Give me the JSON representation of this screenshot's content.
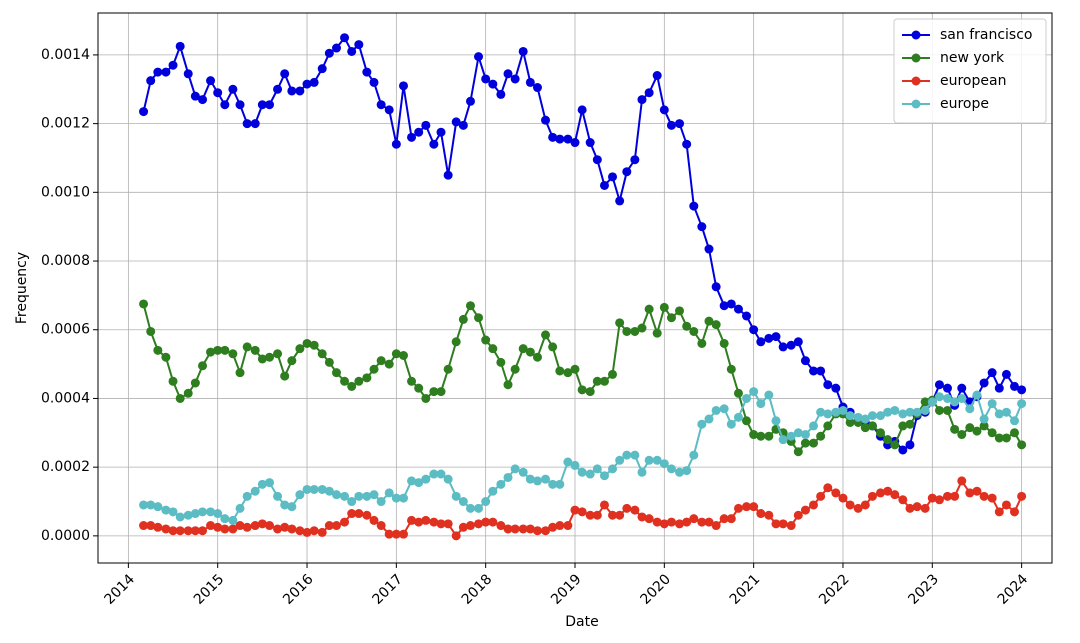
{
  "chart_data": {
    "type": "line",
    "xlabel": "Date",
    "ylabel": "Frequency",
    "x": [
      2014.17,
      2014.25,
      2014.33,
      2014.42,
      2014.5,
      2014.58,
      2014.67,
      2014.75,
      2014.83,
      2014.92,
      2015,
      2015.08,
      2015.17,
      2015.25,
      2015.33,
      2015.42,
      2015.5,
      2015.58,
      2015.67,
      2015.75,
      2015.83,
      2015.92,
      2016,
      2016.08,
      2016.17,
      2016.25,
      2016.33,
      2016.42,
      2016.5,
      2016.58,
      2016.67,
      2016.75,
      2016.83,
      2016.92,
      2017,
      2017.08,
      2017.17,
      2017.25,
      2017.33,
      2017.42,
      2017.5,
      2017.58,
      2017.67,
      2017.75,
      2017.83,
      2017.92,
      2018,
      2018.08,
      2018.17,
      2018.25,
      2018.33,
      2018.42,
      2018.5,
      2018.58,
      2018.67,
      2018.75,
      2018.83,
      2018.92,
      2019,
      2019.08,
      2019.17,
      2019.25,
      2019.33,
      2019.42,
      2019.5,
      2019.58,
      2019.67,
      2019.75,
      2019.83,
      2019.92,
      2020,
      2020.08,
      2020.17,
      2020.25,
      2020.33,
      2020.42,
      2020.5,
      2020.58,
      2020.67,
      2020.75,
      2020.83,
      2020.92,
      2021,
      2021.08,
      2021.17,
      2021.25,
      2021.33,
      2021.42,
      2021.5,
      2021.58,
      2021.67,
      2021.75,
      2021.83,
      2021.92,
      2022,
      2022.08,
      2022.17,
      2022.25,
      2022.33,
      2022.42,
      2022.5,
      2022.58,
      2022.67,
      2022.75,
      2022.83,
      2022.92,
      2023,
      2023.08,
      2023.17,
      2023.25,
      2023.33,
      2023.42,
      2023.5,
      2023.58,
      2023.67,
      2023.75,
      2023.83,
      2023.92,
      2024
    ],
    "series": [
      {
        "name": "san francisco",
        "color": "#0000dd",
        "values": [
          0.001235,
          0.001325,
          0.00135,
          0.00135,
          0.00137,
          0.001425,
          0.001345,
          0.00128,
          0.00127,
          0.001325,
          0.00129,
          0.001255,
          0.0013,
          0.001255,
          0.0012,
          0.0012,
          0.001255,
          0.001255,
          0.0013,
          0.001345,
          0.001295,
          0.001295,
          0.001315,
          0.00132,
          0.00136,
          0.001405,
          0.00142,
          0.00145,
          0.00141,
          0.00143,
          0.00135,
          0.00132,
          0.001255,
          0.00124,
          0.00114,
          0.00131,
          0.00116,
          0.001175,
          0.001195,
          0.00114,
          0.001175,
          0.00105,
          0.001205,
          0.001195,
          0.001265,
          0.001395,
          0.00133,
          0.001315,
          0.001285,
          0.001345,
          0.00133,
          0.00141,
          0.00132,
          0.001305,
          0.00121,
          0.00116,
          0.001155,
          0.001155,
          0.001145,
          0.00124,
          0.001145,
          0.001095,
          0.00102,
          0.001045,
          0.000975,
          0.00106,
          0.001095,
          0.00127,
          0.00129,
          0.00134,
          0.00124,
          0.001195,
          0.0012,
          0.00114,
          0.00096,
          0.0009,
          0.000835,
          0.000725,
          0.00067,
          0.000675,
          0.00066,
          0.00064,
          0.0006,
          0.000565,
          0.000575,
          0.00058,
          0.00055,
          0.000555,
          0.000565,
          0.00051,
          0.00048,
          0.00048,
          0.00044,
          0.00043,
          0.000375,
          0.00036,
          0.000335,
          0.00033,
          0.00032,
          0.00029,
          0.000265,
          0.000275,
          0.00025,
          0.000265,
          0.00035,
          0.00036,
          0.00039,
          0.00044,
          0.00043,
          0.00038,
          0.00043,
          0.00039,
          0.000405,
          0.000445,
          0.000475,
          0.00043,
          0.00047,
          0.000435,
          0.000425
        ]
      },
      {
        "name": "new york",
        "color": "#2e7d1f",
        "values": [
          0.000675,
          0.000595,
          0.00054,
          0.00052,
          0.00045,
          0.0004,
          0.000415,
          0.000445,
          0.000495,
          0.000535,
          0.00054,
          0.00054,
          0.00053,
          0.000475,
          0.00055,
          0.00054,
          0.000515,
          0.00052,
          0.00053,
          0.000465,
          0.00051,
          0.000545,
          0.00056,
          0.000555,
          0.00053,
          0.000505,
          0.000475,
          0.00045,
          0.000435,
          0.00045,
          0.00046,
          0.000485,
          0.00051,
          0.0005,
          0.00053,
          0.000525,
          0.00045,
          0.00043,
          0.0004,
          0.00042,
          0.00042,
          0.000485,
          0.000565,
          0.00063,
          0.00067,
          0.000635,
          0.00057,
          0.000545,
          0.000505,
          0.00044,
          0.000485,
          0.000545,
          0.000535,
          0.00052,
          0.000585,
          0.00055,
          0.00048,
          0.000475,
          0.000485,
          0.000425,
          0.00042,
          0.00045,
          0.00045,
          0.00047,
          0.00062,
          0.000595,
          0.000595,
          0.000605,
          0.00066,
          0.00059,
          0.000665,
          0.000635,
          0.000655,
          0.00061,
          0.000595,
          0.00056,
          0.000625,
          0.000615,
          0.00056,
          0.000485,
          0.000415,
          0.000335,
          0.000295,
          0.00029,
          0.00029,
          0.00031,
          0.0003,
          0.000275,
          0.000245,
          0.00027,
          0.00027,
          0.00029,
          0.00032,
          0.000355,
          0.000355,
          0.00033,
          0.00033,
          0.000315,
          0.00032,
          0.0003,
          0.00028,
          0.000265,
          0.00032,
          0.000325,
          0.000355,
          0.00039,
          0.000395,
          0.000365,
          0.000365,
          0.00031,
          0.000295,
          0.000315,
          0.000305,
          0.00032,
          0.0003,
          0.000285,
          0.000285,
          0.0003,
          0.000265
        ]
      },
      {
        "name": "european",
        "color": "#e03020",
        "values": [
          3e-05,
          3e-05,
          2.5e-05,
          2e-05,
          1.5e-05,
          1.5e-05,
          1.5e-05,
          1.5e-05,
          1.5e-05,
          3e-05,
          2.5e-05,
          2e-05,
          2e-05,
          3e-05,
          2.5e-05,
          3e-05,
          3.5e-05,
          3e-05,
          2e-05,
          2.5e-05,
          2e-05,
          1.5e-05,
          1e-05,
          1.5e-05,
          1e-05,
          3e-05,
          3e-05,
          4e-05,
          6.5e-05,
          6.5e-05,
          6e-05,
          4.5e-05,
          3e-05,
          5e-06,
          5e-06,
          5e-06,
          4.5e-05,
          4e-05,
          4.5e-05,
          4e-05,
          3.5e-05,
          3.5e-05,
          0,
          2.5e-05,
          3e-05,
          3.5e-05,
          4e-05,
          4e-05,
          3e-05,
          2e-05,
          2e-05,
          2e-05,
          2e-05,
          1.5e-05,
          1.5e-05,
          2.5e-05,
          3e-05,
          3e-05,
          7.5e-05,
          7e-05,
          6e-05,
          6e-05,
          9e-05,
          6e-05,
          6e-05,
          8e-05,
          7.5e-05,
          5.5e-05,
          5e-05,
          4e-05,
          3.5e-05,
          4e-05,
          3.5e-05,
          4e-05,
          5e-05,
          4e-05,
          4e-05,
          3e-05,
          5e-05,
          5e-05,
          8e-05,
          8.5e-05,
          8.5e-05,
          6.5e-05,
          6e-05,
          3.5e-05,
          3.5e-05,
          3e-05,
          6e-05,
          7.5e-05,
          9e-05,
          0.000115,
          0.00014,
          0.000125,
          0.00011,
          9e-05,
          8e-05,
          9e-05,
          0.000115,
          0.000125,
          0.00013,
          0.00012,
          0.000105,
          8e-05,
          8.5e-05,
          8e-05,
          0.00011,
          0.000105,
          0.000115,
          0.000115,
          0.00016,
          0.000125,
          0.00013,
          0.000115,
          0.00011,
          7e-05,
          9e-05,
          7e-05,
          0.000115
        ]
      },
      {
        "name": "europe",
        "color": "#5bbcc4",
        "values": [
          9e-05,
          9e-05,
          8.5e-05,
          7.5e-05,
          7e-05,
          5.5e-05,
          6e-05,
          6.5e-05,
          7e-05,
          7e-05,
          6.5e-05,
          5e-05,
          4.5e-05,
          8e-05,
          0.000115,
          0.00013,
          0.00015,
          0.000155,
          0.000115,
          9e-05,
          8.5e-05,
          0.00012,
          0.000135,
          0.000135,
          0.000135,
          0.00013,
          0.00012,
          0.000115,
          0.0001,
          0.000115,
          0.000115,
          0.00012,
          0.0001,
          0.000125,
          0.00011,
          0.00011,
          0.00016,
          0.000155,
          0.000165,
          0.00018,
          0.00018,
          0.000165,
          0.000115,
          0.0001,
          8e-05,
          8e-05,
          0.0001,
          0.00013,
          0.00015,
          0.00017,
          0.000195,
          0.000185,
          0.000165,
          0.00016,
          0.000165,
          0.00015,
          0.00015,
          0.000215,
          0.000205,
          0.000185,
          0.00018,
          0.000195,
          0.000175,
          0.000195,
          0.00022,
          0.000235,
          0.000235,
          0.000185,
          0.00022,
          0.00022,
          0.00021,
          0.000195,
          0.000185,
          0.00019,
          0.000235,
          0.000325,
          0.00034,
          0.000365,
          0.00037,
          0.000325,
          0.000345,
          0.0004,
          0.00042,
          0.000385,
          0.00041,
          0.000335,
          0.00028,
          0.00029,
          0.0003,
          0.000295,
          0.00032,
          0.00036,
          0.000355,
          0.00036,
          0.000365,
          0.00035,
          0.000345,
          0.00034,
          0.00035,
          0.00035,
          0.00036,
          0.000365,
          0.000355,
          0.00036,
          0.00036,
          0.000365,
          0.00039,
          0.000405,
          0.0004,
          0.00039,
          0.0004,
          0.00037,
          0.00041,
          0.00034,
          0.000385,
          0.000355,
          0.00036,
          0.000335,
          0.000385
        ]
      }
    ],
    "xlim": [
      2013.66,
      2024.34
    ],
    "xticks": [
      2014,
      2015,
      2016,
      2017,
      2018,
      2019,
      2020,
      2021,
      2022,
      2023,
      2024
    ],
    "ylim": [
      -7.9e-05,
      0.001522
    ],
    "yticks": [
      {
        "value": 0,
        "label": "0.0000"
      },
      0.0002,
      0.0004,
      0.0006,
      0.0008,
      {
        "value": 0.001,
        "label": "0.0010"
      },
      0.0012,
      0.0014
    ],
    "grid": true,
    "legend": "upper right"
  }
}
